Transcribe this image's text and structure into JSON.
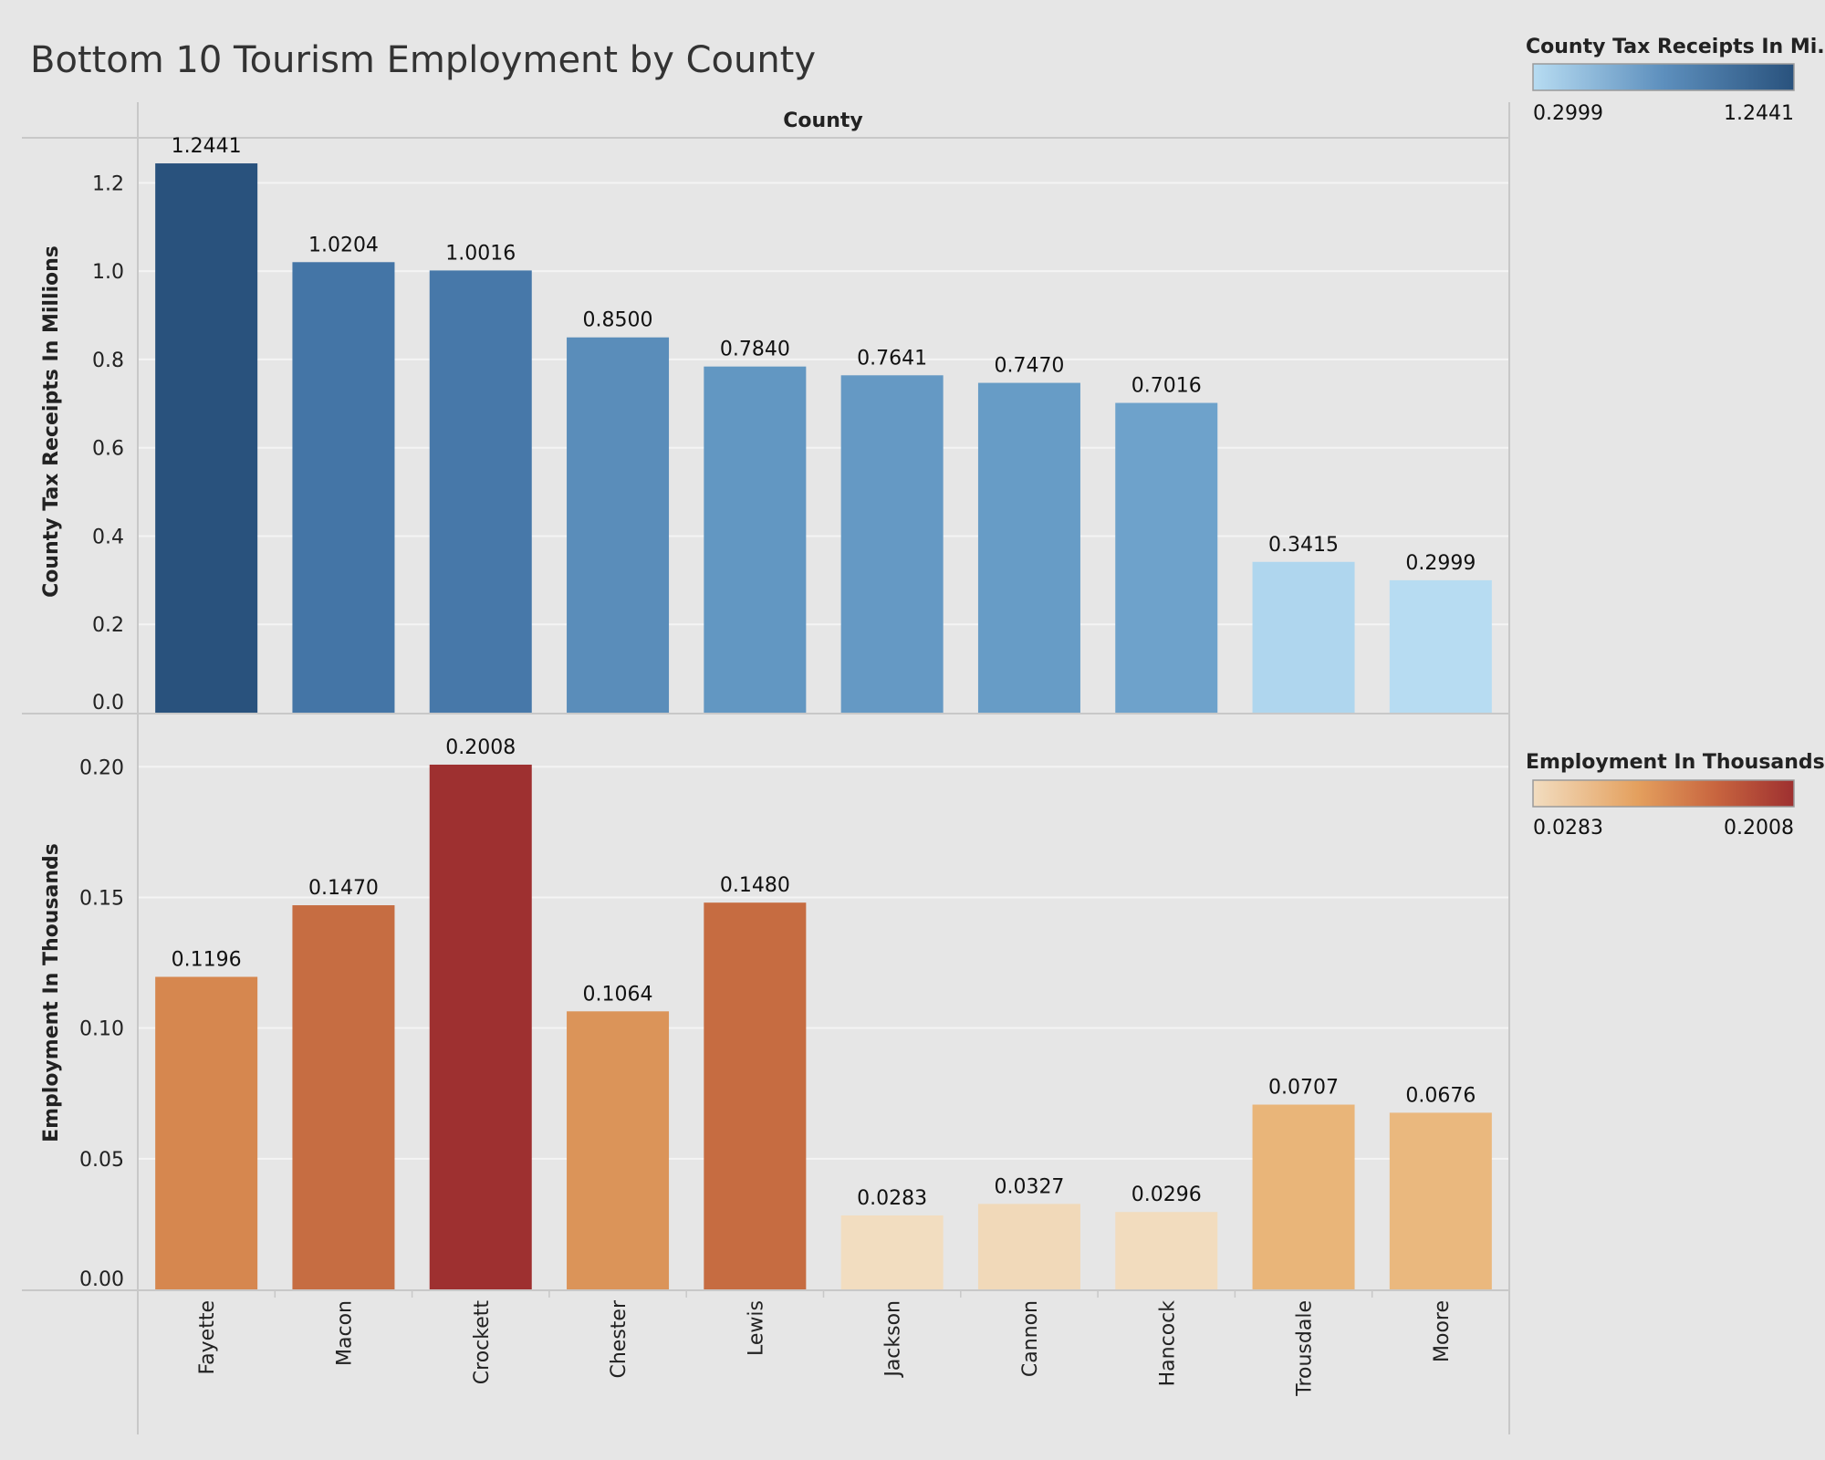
{
  "title": "Bottom 10 Tourism Employment by County",
  "column_header": "County",
  "colors": {
    "background": "#e6e6e6",
    "gridline": "#f4f4f4",
    "divider": "#c8c8c8",
    "blue_low": "#b7dcf2",
    "blue_high": "#29527d",
    "orange_low": "#f2ddc0",
    "orange_mid": "#e4a05e",
    "orange_high": "#9e3030"
  },
  "chart_data": [
    {
      "type": "bar",
      "title": "",
      "xlabel": "County",
      "ylabel": "County Tax Receipts In Millions",
      "categories": [
        "Fayette",
        "Macon",
        "Crockett",
        "Chester",
        "Lewis",
        "Jackson",
        "Cannon",
        "Hancock",
        "Trousdale",
        "Moore"
      ],
      "values": [
        1.2441,
        1.0204,
        1.0016,
        0.85,
        0.784,
        0.7641,
        0.747,
        0.7016,
        0.3415,
        0.2999
      ],
      "value_labels": [
        "1.2441",
        "1.0204",
        "1.0016",
        "0.8500",
        "0.7840",
        "0.7641",
        "0.7470",
        "0.7016",
        "0.3415",
        "0.2999"
      ],
      "ylim": [
        0,
        1.3
      ],
      "ticks": [
        0.0,
        0.2,
        0.4,
        0.6,
        0.8,
        1.0,
        1.2
      ],
      "tick_labels": [
        "0.0",
        "0.2",
        "0.4",
        "0.6",
        "0.8",
        "1.0",
        "1.2"
      ],
      "grid": true,
      "color_legend": {
        "title": "County Tax Receipts In Mi..",
        "min_label": "0.2999",
        "max_label": "1.2441",
        "min": 0.2999,
        "max": 1.2441,
        "palette": "blue",
        "placement": "top-right"
      }
    },
    {
      "type": "bar",
      "title": "",
      "xlabel": "County",
      "ylabel": "Employment In Thousands",
      "categories": [
        "Fayette",
        "Macon",
        "Crockett",
        "Chester",
        "Lewis",
        "Jackson",
        "Cannon",
        "Hancock",
        "Trousdale",
        "Moore"
      ],
      "values": [
        0.1196,
        0.147,
        0.2008,
        0.1064,
        0.148,
        0.0283,
        0.0327,
        0.0296,
        0.0707,
        0.0676
      ],
      "value_labels": [
        "0.1196",
        "0.1470",
        "0.2008",
        "0.1064",
        "0.1480",
        "0.0283",
        "0.0327",
        "0.0296",
        "0.0707",
        "0.0676"
      ],
      "ylim": [
        0,
        0.22
      ],
      "ticks": [
        0.0,
        0.05,
        0.1,
        0.15,
        0.2
      ],
      "tick_labels": [
        "0.00",
        "0.05",
        "0.10",
        "0.15",
        "0.20"
      ],
      "grid": true,
      "color_legend": {
        "title": "Employment In Thousands",
        "min_label": "0.0283",
        "max_label": "0.2008",
        "min": 0.0283,
        "max": 0.2008,
        "palette": "orange",
        "placement": "right"
      }
    }
  ]
}
